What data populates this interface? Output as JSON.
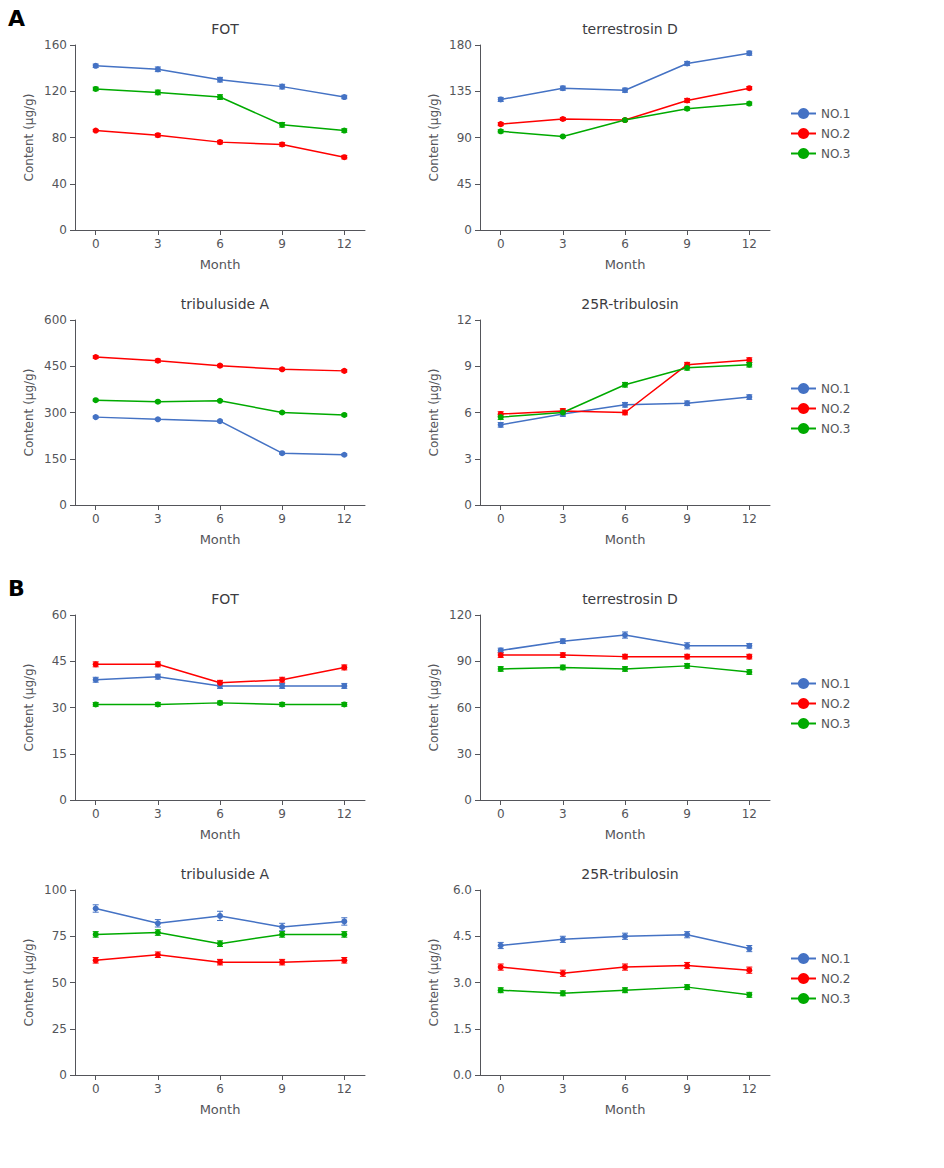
{
  "chart_data": [
    {
      "type": "line",
      "title": "FOT",
      "xlabel": "Month",
      "ylabel": "Content (μg/g)",
      "x": [
        0,
        3,
        6,
        9,
        12
      ],
      "xlim": [
        -1,
        13
      ],
      "xticks": [
        0,
        3,
        6,
        9,
        12
      ],
      "ylim": [
        0,
        160
      ],
      "yticks": [
        0,
        40,
        80,
        120,
        160
      ],
      "grid": false,
      "marker": "circle",
      "annotations": [
        "A"
      ],
      "series": [
        {
          "name": "NO.1",
          "color": "#4472C4",
          "values": [
            142,
            139,
            130,
            124,
            115
          ],
          "yerr": [
            1.5,
            2.0,
            2.0,
            2.0,
            1.5
          ]
        },
        {
          "name": "NO.2",
          "color": "#FF0000",
          "values": [
            86,
            82,
            76,
            74,
            63
          ],
          "yerr": [
            1.0,
            1.5,
            1.5,
            1.5,
            1.5
          ]
        },
        {
          "name": "NO.3",
          "color": "#00AA00",
          "values": [
            122,
            119,
            115,
            91,
            86
          ],
          "yerr": [
            1.5,
            2.0,
            2.0,
            2.0,
            1.5
          ]
        }
      ]
    },
    {
      "type": "line",
      "title": "terrestrosin D",
      "xlabel": "Month",
      "ylabel": "Content (μg/g)",
      "x": [
        0,
        3,
        6,
        9,
        12
      ],
      "xlim": [
        -1,
        13
      ],
      "xticks": [
        0,
        3,
        6,
        9,
        12
      ],
      "ylim": [
        0,
        180
      ],
      "yticks": [
        0,
        45,
        90,
        135,
        180
      ],
      "grid": false,
      "marker": "circle",
      "legend": "right",
      "series": [
        {
          "name": "NO.1",
          "color": "#4472C4",
          "values": [
            127,
            138,
            136,
            162,
            172
          ],
          "yerr": [
            2.0,
            2.0,
            2.0,
            2.0,
            2.0
          ]
        },
        {
          "name": "NO.2",
          "color": "#FF0000",
          "values": [
            103,
            108,
            107,
            126,
            138
          ],
          "yerr": [
            1.5,
            1.5,
            1.5,
            2.0,
            1.5
          ]
        },
        {
          "name": "NO.3",
          "color": "#00AA00",
          "values": [
            96,
            91,
            107,
            118,
            123
          ],
          "yerr": [
            1.5,
            1.0,
            1.5,
            1.5,
            1.5
          ]
        }
      ]
    },
    {
      "type": "line",
      "title": "tribuluside A",
      "xlabel": "Month",
      "ylabel": "Content (μg/g)",
      "x": [
        0,
        3,
        6,
        9,
        12
      ],
      "xlim": [
        -1,
        13
      ],
      "xticks": [
        0,
        3,
        6,
        9,
        12
      ],
      "ylim": [
        0,
        600
      ],
      "yticks": [
        0,
        150,
        300,
        450,
        600
      ],
      "grid": false,
      "marker": "circle",
      "series": [
        {
          "name": "NO.1",
          "color": "#4472C4",
          "values": [
            285,
            278,
            272,
            168,
            163
          ],
          "yerr": [
            3.0,
            3.0,
            3.0,
            3.0,
            3.0
          ]
        },
        {
          "name": "NO.2",
          "color": "#FF0000",
          "values": [
            480,
            468,
            452,
            440,
            435
          ],
          "yerr": [
            4.0,
            5.0,
            4.0,
            4.0,
            4.0
          ]
        },
        {
          "name": "NO.3",
          "color": "#00AA00",
          "values": [
            340,
            335,
            338,
            300,
            292
          ],
          "yerr": [
            3.0,
            3.5,
            3.0,
            3.5,
            3.5
          ]
        }
      ]
    },
    {
      "type": "line",
      "title": "25R-tribulosin",
      "xlabel": "Month",
      "ylabel": "Content (μg/g)",
      "x": [
        0,
        3,
        6,
        9,
        12
      ],
      "xlim": [
        -1,
        13
      ],
      "xticks": [
        0,
        3,
        6,
        9,
        12
      ],
      "ylim": [
        0,
        12
      ],
      "yticks": [
        0,
        3,
        6,
        9,
        12
      ],
      "grid": false,
      "marker": "circle",
      "legend": "right",
      "series": [
        {
          "name": "NO.1",
          "color": "#4472C4",
          "values": [
            5.2,
            5.9,
            6.5,
            6.6,
            7.0
          ],
          "yerr": [
            0.15,
            0.15,
            0.15,
            0.15,
            0.15
          ]
        },
        {
          "name": "NO.2",
          "color": "#FF0000",
          "values": [
            5.9,
            6.1,
            6.0,
            9.1,
            9.4
          ],
          "yerr": [
            0.15,
            0.15,
            0.15,
            0.15,
            0.15
          ]
        },
        {
          "name": "NO.3",
          "color": "#00AA00",
          "values": [
            5.7,
            6.0,
            7.8,
            8.9,
            9.1
          ],
          "yerr": [
            0.15,
            0.15,
            0.15,
            0.15,
            0.15
          ]
        }
      ]
    },
    {
      "type": "line",
      "title": "FOT",
      "xlabel": "Month",
      "ylabel": "Content (μg/g)",
      "x": [
        0,
        3,
        6,
        9,
        12
      ],
      "xlim": [
        -1,
        13
      ],
      "xticks": [
        0,
        3,
        6,
        9,
        12
      ],
      "ylim": [
        0,
        60
      ],
      "yticks": [
        0,
        15,
        30,
        45,
        60
      ],
      "grid": false,
      "marker": "circle",
      "annotations": [
        "B"
      ],
      "series": [
        {
          "name": "NO.1",
          "color": "#4472C4",
          "values": [
            39,
            40,
            37,
            37,
            37
          ],
          "yerr": [
            0.8,
            0.8,
            0.8,
            0.8,
            0.8
          ]
        },
        {
          "name": "NO.2",
          "color": "#FF0000",
          "values": [
            44,
            44,
            38,
            39,
            43
          ],
          "yerr": [
            0.8,
            0.8,
            0.8,
            0.8,
            0.8
          ]
        },
        {
          "name": "NO.3",
          "color": "#00AA00",
          "values": [
            31,
            31,
            31.5,
            31,
            31
          ],
          "yerr": [
            0.6,
            0.6,
            0.6,
            0.6,
            0.6
          ]
        }
      ]
    },
    {
      "type": "line",
      "title": "terrestrosin D",
      "xlabel": "Month",
      "ylabel": "Content (μg/g)",
      "x": [
        0,
        3,
        6,
        9,
        12
      ],
      "xlim": [
        -1,
        13
      ],
      "xticks": [
        0,
        3,
        6,
        9,
        12
      ],
      "ylim": [
        0,
        120
      ],
      "yticks": [
        0,
        30,
        60,
        90,
        120
      ],
      "grid": false,
      "marker": "circle",
      "legend": "right",
      "series": [
        {
          "name": "NO.1",
          "color": "#4472C4",
          "values": [
            97,
            103,
            107,
            100,
            100
          ],
          "yerr": [
            1.5,
            1.5,
            2.0,
            2.0,
            1.5
          ]
        },
        {
          "name": "NO.2",
          "color": "#FF0000",
          "values": [
            94,
            94,
            93,
            93,
            93
          ],
          "yerr": [
            1.5,
            1.5,
            1.5,
            1.5,
            1.5
          ]
        },
        {
          "name": "NO.3",
          "color": "#00AA00",
          "values": [
            85,
            86,
            85,
            87,
            83
          ],
          "yerr": [
            1.5,
            1.5,
            1.5,
            1.5,
            1.5
          ]
        }
      ]
    },
    {
      "type": "line",
      "title": "tribuluside A",
      "xlabel": "Month",
      "ylabel": "Content (μg/g)",
      "x": [
        0,
        3,
        6,
        9,
        12
      ],
      "xlim": [
        -1,
        13
      ],
      "xticks": [
        0,
        3,
        6,
        9,
        12
      ],
      "ylim": [
        0,
        100
      ],
      "yticks": [
        0,
        25,
        50,
        75,
        100
      ],
      "grid": false,
      "marker": "circle",
      "series": [
        {
          "name": "NO.1",
          "color": "#4472C4",
          "values": [
            90,
            82,
            86,
            80,
            83
          ],
          "yerr": [
            2.0,
            2.0,
            2.5,
            2.0,
            2.0
          ]
        },
        {
          "name": "NO.2",
          "color": "#FF0000",
          "values": [
            62,
            65,
            61,
            61,
            62
          ],
          "yerr": [
            1.5,
            1.5,
            1.5,
            1.5,
            1.5
          ]
        },
        {
          "name": "NO.3",
          "color": "#00AA00",
          "values": [
            76,
            77,
            71,
            76,
            76
          ],
          "yerr": [
            1.5,
            1.5,
            1.5,
            1.5,
            1.5
          ]
        }
      ]
    },
    {
      "type": "line",
      "title": "25R-tribulosin",
      "xlabel": "Month",
      "ylabel": "Content (μg/g)",
      "x": [
        0,
        3,
        6,
        9,
        12
      ],
      "xlim": [
        -1,
        13
      ],
      "xticks": [
        0,
        3,
        6,
        9,
        12
      ],
      "ylim": [
        0,
        6
      ],
      "yticks": [
        {
          "value": 0,
          "label": "0.0"
        },
        1.5,
        {
          "value": 3,
          "label": "3.0"
        },
        4.5,
        {
          "value": 6,
          "label": "6.0"
        }
      ],
      "grid": false,
      "marker": "circle",
      "legend": "right",
      "series": [
        {
          "name": "NO.1",
          "color": "#4472C4",
          "values": [
            4.2,
            4.4,
            4.5,
            4.55,
            4.1
          ],
          "yerr": [
            0.1,
            0.1,
            0.1,
            0.1,
            0.1
          ]
        },
        {
          "name": "NO.2",
          "color": "#FF0000",
          "values": [
            3.5,
            3.3,
            3.5,
            3.55,
            3.4
          ],
          "yerr": [
            0.1,
            0.1,
            0.1,
            0.1,
            0.1
          ]
        },
        {
          "name": "NO.3",
          "color": "#00AA00",
          "values": [
            2.75,
            2.65,
            2.75,
            2.85,
            2.6
          ],
          "yerr": [
            0.08,
            0.08,
            0.08,
            0.08,
            0.08
          ]
        }
      ]
    }
  ]
}
